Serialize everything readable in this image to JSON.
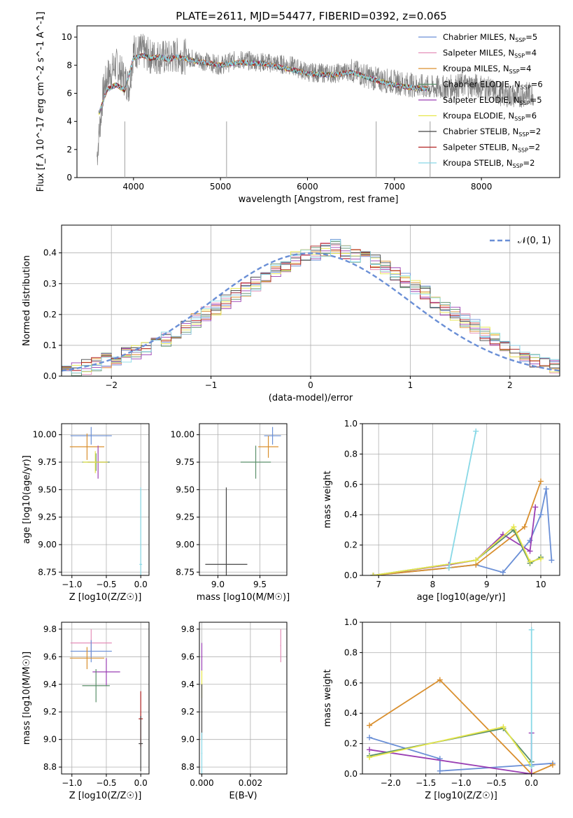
{
  "title": "PLATE=2611, MJD=54477, FIBERID=0392, z=0.065",
  "legend": [
    {
      "main": "Chabrier MILES, N",
      "sub": "SSP",
      "suffix": "=5",
      "color": "#6a8fd6"
    },
    {
      "main": "Salpeter MILES, N",
      "sub": "SSP",
      "suffix": "=4",
      "color": "#e58fb9"
    },
    {
      "main": "Kroupa MILES, N",
      "sub": "SSP",
      "suffix": "=4",
      "color": "#d98f2e"
    },
    {
      "main": "Chabrier ELODIE, N",
      "sub": "SSP",
      "suffix": "=6",
      "color": "#5a8f6a"
    },
    {
      "main": "Salpeter ELODIE, N",
      "sub": "SSP",
      "suffix": "=5",
      "color": "#9a3fb3"
    },
    {
      "main": "Kroupa ELODIE, N",
      "sub": "SSP",
      "suffix": "=6",
      "color": "#e6e64a"
    },
    {
      "main": "Chabrier STELIB, N",
      "sub": "SSP",
      "suffix": "=2",
      "color": "#444444"
    },
    {
      "main": "Salpeter STELIB, N",
      "sub": "SSP",
      "suffix": "=2",
      "color": "#b22222"
    },
    {
      "main": "Kroupa STELIB, N",
      "sub": "SSP",
      "suffix": "=2",
      "color": "#88d8e6"
    }
  ],
  "chart_data": [
    {
      "type": "line",
      "name": "spectrum",
      "xlabel": "wavelength [Angstrom, rest frame]",
      "ylabel": "Flux [f_λ 10^-17 erg cm^-2 s^-1 A^-1]",
      "xlim": [
        3350,
        8900
      ],
      "ylim": [
        0,
        10.8
      ],
      "xticks": [
        4000,
        5000,
        6000,
        7000,
        8000
      ],
      "yticks": [
        0,
        2,
        4,
        6,
        8,
        10
      ],
      "data_trace": {
        "x": [
          3580,
          3650,
          3700,
          3800,
          3900,
          3950,
          4000,
          4100,
          4200,
          4300,
          4400,
          4500,
          4600,
          4800,
          5000,
          5200,
          5500,
          5800,
          6000,
          6300,
          6500,
          6800,
          7000,
          7200,
          7400,
          7600,
          7800,
          8000,
          8200,
          8400,
          8600
        ],
        "y": [
          1.5,
          6.0,
          7.2,
          8.0,
          7.0,
          6.5,
          9.0,
          9.0,
          8.6,
          8.6,
          8.5,
          8.7,
          8.6,
          8.3,
          8.0,
          8.4,
          8.2,
          8.0,
          7.5,
          7.4,
          7.6,
          7.0,
          6.8,
          6.6,
          6.4,
          6.4,
          6.6,
          6.5,
          6.0,
          5.8,
          6.0
        ]
      },
      "model_trace": {
        "x": [
          3600,
          3700,
          3800,
          3900,
          4000,
          4100,
          4200,
          4300,
          4400,
          4500,
          4700,
          5000,
          5200,
          5500,
          5800,
          6000,
          6300,
          6500,
          6800,
          7000,
          7200,
          7400
        ],
        "y": [
          4.5,
          6.3,
          6.6,
          6.2,
          8.5,
          8.7,
          8.5,
          8.6,
          8.4,
          8.6,
          8.3,
          8.0,
          8.2,
          8.1,
          7.7,
          7.4,
          7.3,
          7.5,
          6.9,
          6.6,
          6.4,
          6.3
        ]
      }
    },
    {
      "type": "histogram",
      "name": "residuals",
      "xlabel": "(data-model)/error",
      "ylabel": "Normed distribution",
      "xlim": [
        -2.5,
        2.5
      ],
      "ylim": [
        0,
        0.49
      ],
      "xticks": [
        -2,
        -1,
        0,
        1,
        2
      ],
      "yticks": [
        0,
        0.1,
        0.2,
        0.3,
        0.4
      ],
      "legend": "$\\mathcal{N}(0,1)$",
      "bin_width": 0.1,
      "hist_values": [
        0.02,
        0.02,
        0.03,
        0.04,
        0.05,
        0.06,
        0.07,
        0.08,
        0.09,
        0.1,
        0.12,
        0.14,
        0.16,
        0.18,
        0.2,
        0.22,
        0.24,
        0.26,
        0.28,
        0.3,
        0.32,
        0.34,
        0.36,
        0.38,
        0.4,
        0.4,
        0.41,
        0.42,
        0.4,
        0.39,
        0.38,
        0.37,
        0.35,
        0.33,
        0.31,
        0.29,
        0.27,
        0.24,
        0.22,
        0.2,
        0.18,
        0.16,
        0.14,
        0.12,
        0.1,
        0.08,
        0.06,
        0.05,
        0.04,
        0.03
      ],
      "gaussian": {
        "mu": 0,
        "sigma": 1
      }
    },
    {
      "type": "scatter",
      "name": "age-vs-Z",
      "xlabel": "Z [log10(Z/Z☉)]",
      "ylabel": "age  [log10(age/yr)]",
      "xlim": [
        -1.15,
        0.12
      ],
      "ylim": [
        8.72,
        10.1
      ],
      "xticks": [
        -1.0,
        -0.5,
        0.0
      ],
      "yticks": [
        8.75,
        9.0,
        9.25,
        9.5,
        9.75,
        10.0
      ],
      "points": [
        {
          "x": -0.72,
          "y": 9.99,
          "xerr": 0.3,
          "yerr": 0.08,
          "color": "#6a8fd6"
        },
        {
          "x": -0.78,
          "y": 9.89,
          "xerr": 0.25,
          "yerr": 0.12,
          "color": "#d98f2e"
        },
        {
          "x": -0.62,
          "y": 9.75,
          "xerr": 0.15,
          "yerr": 0.15,
          "color": "#9a3fb3"
        },
        {
          "x": -0.65,
          "y": 9.75,
          "xerr": 0.2,
          "yerr": 0.08,
          "color": "#5a8f6a"
        },
        {
          "x": -0.66,
          "y": 9.75,
          "xerr": 0.18,
          "yerr": 0.1,
          "color": "#e6e64a"
        },
        {
          "x": 0.0,
          "y": 8.82,
          "xerr": 0.02,
          "yerr": 0.7,
          "color": "#88d8e6"
        }
      ]
    },
    {
      "type": "scatter",
      "name": "age-vs-mass",
      "xlabel": "mass [log10(M/M☉)]",
      "ylabel": "",
      "xlim": [
        8.78,
        9.82
      ],
      "ylim": [
        8.72,
        10.1
      ],
      "xticks": [
        9.0,
        9.5
      ],
      "yticks": [
        8.75,
        9.0,
        9.25,
        9.5,
        9.75,
        10.0
      ],
      "points": [
        {
          "x": 9.65,
          "y": 9.99,
          "xerr": 0.1,
          "yerr": 0.08,
          "color": "#6a8fd6"
        },
        {
          "x": 9.6,
          "y": 9.89,
          "xerr": 0.12,
          "yerr": 0.1,
          "color": "#d98f2e"
        },
        {
          "x": 9.45,
          "y": 9.75,
          "xerr": 0.18,
          "yerr": 0.15,
          "color": "#5a8f6a"
        },
        {
          "x": 9.1,
          "y": 8.82,
          "xerr": 0.25,
          "yerr": 0.7,
          "color": "#444444"
        }
      ]
    },
    {
      "type": "line",
      "name": "mass-weight-vs-age",
      "xlabel": "age  [log10(age/yr)]",
      "ylabel": "mass weight",
      "xlim": [
        6.7,
        10.35
      ],
      "ylim": [
        0,
        1.0
      ],
      "xticks": [
        7,
        8,
        9,
        10
      ],
      "yticks": [
        0.0,
        0.2,
        0.4,
        0.6,
        0.8,
        1.0
      ],
      "series": [
        {
          "color": "#6a8fd6",
          "x": [
            6.9,
            8.3,
            8.8,
            9.3,
            9.8,
            10.0,
            10.1,
            10.2
          ],
          "y": [
            0.0,
            0.05,
            0.07,
            0.02,
            0.23,
            0.4,
            0.57,
            0.1
          ]
        },
        {
          "color": "#d98f2e",
          "x": [
            6.9,
            8.3,
            8.8,
            9.7,
            10.0
          ],
          "y": [
            0.0,
            0.05,
            0.07,
            0.32,
            0.62
          ]
        },
        {
          "color": "#9a3fb3",
          "x": [
            6.9,
            8.3,
            8.8,
            9.3,
            9.8,
            9.9
          ],
          "y": [
            0.0,
            0.07,
            0.1,
            0.27,
            0.16,
            0.45
          ]
        },
        {
          "color": "#5a8f6a",
          "x": [
            6.9,
            8.8,
            9.5,
            9.8,
            10.0
          ],
          "y": [
            0.0,
            0.1,
            0.3,
            0.08,
            0.12
          ]
        },
        {
          "color": "#e6e64a",
          "x": [
            6.9,
            8.8,
            9.5,
            9.8,
            10.0
          ],
          "y": [
            0.0,
            0.1,
            0.32,
            0.09,
            0.11
          ]
        },
        {
          "color": "#88d8e6",
          "x": [
            8.3,
            8.8
          ],
          "y": [
            0.05,
            0.95
          ]
        }
      ]
    },
    {
      "type": "scatter",
      "name": "mass-vs-Z",
      "xlabel": "Z [log10(Z/Z☉)]",
      "ylabel": "mass [log10(M/M☉)]",
      "xlim": [
        -1.15,
        0.12
      ],
      "ylim": [
        8.75,
        9.85
      ],
      "xticks": [
        -1.0,
        -0.5,
        0.0
      ],
      "yticks": [
        8.8,
        9.0,
        9.2,
        9.4,
        9.6,
        9.8
      ],
      "points": [
        {
          "x": -0.72,
          "y": 9.7,
          "xerr": 0.3,
          "yerr": 0.1,
          "color": "#e58fb9"
        },
        {
          "x": -0.72,
          "y": 9.64,
          "xerr": 0.3,
          "yerr": 0.08,
          "color": "#6a8fd6"
        },
        {
          "x": -0.78,
          "y": 9.59,
          "xerr": 0.25,
          "yerr": 0.08,
          "color": "#d98f2e"
        },
        {
          "x": -0.5,
          "y": 9.49,
          "xerr": 0.2,
          "yerr": 0.1,
          "color": "#9a3fb3"
        },
        {
          "x": -0.65,
          "y": 9.39,
          "xerr": 0.2,
          "yerr": 0.12,
          "color": "#5a8f6a"
        },
        {
          "x": 0.0,
          "y": 9.15,
          "xerr": 0.03,
          "yerr": 0.2,
          "color": "#b22222"
        },
        {
          "x": 0.0,
          "y": 8.97,
          "xerr": 0.03,
          "yerr": 0.2,
          "color": "#444444"
        }
      ]
    },
    {
      "type": "scatter",
      "name": "mass-vs-EBV",
      "xlabel": "E(B-V)",
      "ylabel": "",
      "xlim": [
        -0.0001,
        0.0035
      ],
      "ylim": [
        8.75,
        9.85
      ],
      "xticks": [
        0.0,
        0.002
      ],
      "yticks": [
        8.8,
        9.0,
        9.2,
        9.4,
        9.6,
        9.8
      ],
      "points": [
        {
          "x": 0.0,
          "y": 9.6,
          "xerr": 2e-05,
          "yerr": 0.1,
          "color": "#9a3fb3"
        },
        {
          "x": 0.0,
          "y": 9.4,
          "xerr": 2e-05,
          "yerr": 0.1,
          "color": "#e6e64a"
        },
        {
          "x": 0.0,
          "y": 9.2,
          "xerr": 2e-05,
          "yerr": 0.2,
          "color": "#444444"
        },
        {
          "x": 0.0,
          "y": 8.9,
          "xerr": 2e-05,
          "yerr": 0.15,
          "color": "#88d8e6"
        },
        {
          "x": 0.00325,
          "y": 9.68,
          "xerr": 2e-05,
          "yerr": 0.12,
          "color": "#e58fb9"
        }
      ]
    },
    {
      "type": "line",
      "name": "mass-weight-vs-Z",
      "xlabel": "Z [log10(Z/Z☉)]",
      "ylabel": "mass weight",
      "xlim": [
        -2.4,
        0.4
      ],
      "ylim": [
        0,
        1.0
      ],
      "xticks": [
        -2.0,
        -1.5,
        -1.0,
        -0.5,
        0.0
      ],
      "yticks": [
        0.0,
        0.2,
        0.4,
        0.6,
        0.8,
        1.0
      ],
      "series": [
        {
          "color": "#6a8fd6",
          "x": [
            -2.3,
            -1.3,
            -1.3,
            0.0,
            0.3
          ],
          "y": [
            0.24,
            0.1,
            0.02,
            0.06,
            0.07
          ]
        },
        {
          "color": "#d98f2e",
          "x": [
            -2.3,
            -1.3,
            0.0,
            0.3
          ],
          "y": [
            0.32,
            0.62,
            0.0,
            0.06
          ]
        },
        {
          "color": "#9a3fb3",
          "x": [
            -2.3,
            0.0,
            0.0
          ],
          "y": [
            0.16,
            0.0,
            0.27
          ]
        },
        {
          "color": "#5a8f6a",
          "x": [
            -2.3,
            -0.4,
            0.0
          ],
          "y": [
            0.12,
            0.3,
            0.08
          ]
        },
        {
          "color": "#e6e64a",
          "x": [
            -2.3,
            -0.4,
            0.0
          ],
          "y": [
            0.11,
            0.31,
            0.05
          ]
        },
        {
          "color": "#88d8e6",
          "x": [
            0.0,
            0.0
          ],
          "y": [
            0.05,
            0.95
          ]
        }
      ]
    }
  ]
}
